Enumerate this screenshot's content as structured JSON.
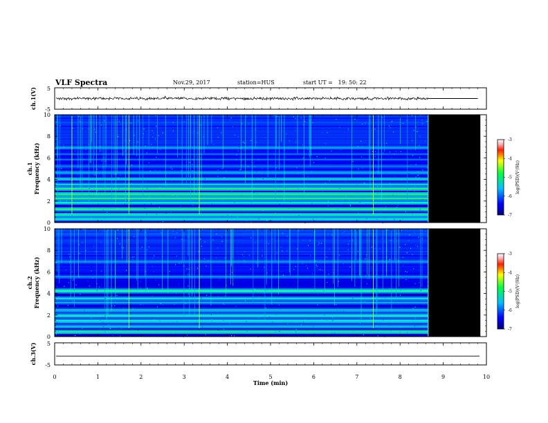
{
  "header": {
    "title": "VLF Spectra",
    "date": "Nov.29, 2017",
    "station": "station=HUS",
    "start": "start UT =   19: 50: 22"
  },
  "chart_data": [
    {
      "type": "line",
      "panel": "ch1-waveform",
      "ylabel": "ch.1(V)",
      "ylim": [
        -5,
        5
      ],
      "yticks": [
        "5",
        "-5"
      ],
      "xlim": [
        0,
        10
      ],
      "signal_end_min": 8.65,
      "amplitude_v": 0.6
    },
    {
      "type": "heatmap",
      "panel": "ch1-spectrogram",
      "ylabel": "ch.1\nFrequency (kHz)",
      "ylim": [
        0,
        10
      ],
      "yticks": [
        "0",
        "2",
        "4",
        "6",
        "8",
        "10"
      ],
      "xlim": [
        0,
        10
      ],
      "data_end_min": 8.65,
      "no_data_end_min": 9.85,
      "bands_khz": [
        {
          "f": 0.4,
          "level": 0.55
        },
        {
          "f": 0.8,
          "level": 0.6
        },
        {
          "f": 1.3,
          "level": 0.62
        },
        {
          "f": 1.9,
          "level": 0.55
        },
        {
          "f": 2.3,
          "level": 0.62
        },
        {
          "f": 2.7,
          "level": 0.65
        },
        {
          "f": 3.2,
          "level": 0.6
        },
        {
          "f": 3.6,
          "level": 0.5
        },
        {
          "f": 4.1,
          "level": 0.48
        },
        {
          "f": 4.7,
          "level": 0.48
        },
        {
          "f": 5.3,
          "level": 0.35
        },
        {
          "f": 5.9,
          "level": 0.3
        },
        {
          "f": 6.4,
          "level": 0.3
        },
        {
          "f": 7.0,
          "level": 0.45
        }
      ],
      "spikes_min": [
        0.4,
        1.72,
        3.35,
        7.38
      ],
      "colorbar": {
        "label": "log(PSD)(V²/Hz)",
        "ticks": [
          "-3",
          "-4",
          "-5",
          "-6",
          "-7"
        ],
        "range": [
          -7,
          -3
        ]
      }
    },
    {
      "type": "heatmap",
      "panel": "ch2-spectrogram",
      "ylabel": "ch.2\nFrequency (kHz)",
      "ylim": [
        0,
        10
      ],
      "yticks": [
        "0",
        "2",
        "4",
        "6",
        "8",
        "10"
      ],
      "xlim": [
        0,
        10
      ],
      "data_end_min": 8.65,
      "no_data_end_min": 9.85,
      "bands_khz": [
        {
          "f": 0.5,
          "level": 0.6
        },
        {
          "f": 1.0,
          "level": 0.5
        },
        {
          "f": 1.5,
          "level": 0.6
        },
        {
          "f": 2.0,
          "level": 0.58
        },
        {
          "f": 2.5,
          "level": 0.5
        },
        {
          "f": 3.2,
          "level": 0.42
        },
        {
          "f": 3.6,
          "level": 0.5
        },
        {
          "f": 4.3,
          "level": 0.65
        },
        {
          "f": 5.6,
          "level": 0.42
        },
        {
          "f": 7.0,
          "level": 0.42
        }
      ],
      "spikes_min": [
        1.72,
        3.35,
        7.38
      ],
      "colorbar": {
        "label": "log(PSD)(V²/Hz)",
        "ticks": [
          "-3",
          "-4",
          "-5",
          "-6",
          "-7"
        ],
        "range": [
          -7,
          -3
        ]
      }
    },
    {
      "type": "line",
      "panel": "ch3-waveform",
      "ylabel": "ch.3(V)",
      "ylim": [
        -5,
        5
      ],
      "yticks": [
        "5",
        "-5"
      ],
      "xlim": [
        0,
        10
      ],
      "value_v": -1,
      "xlabel": "Time (min)",
      "xticks": [
        "0",
        "1",
        "2",
        "3",
        "4",
        "5",
        "6",
        "7",
        "8",
        "9",
        "10"
      ]
    }
  ]
}
